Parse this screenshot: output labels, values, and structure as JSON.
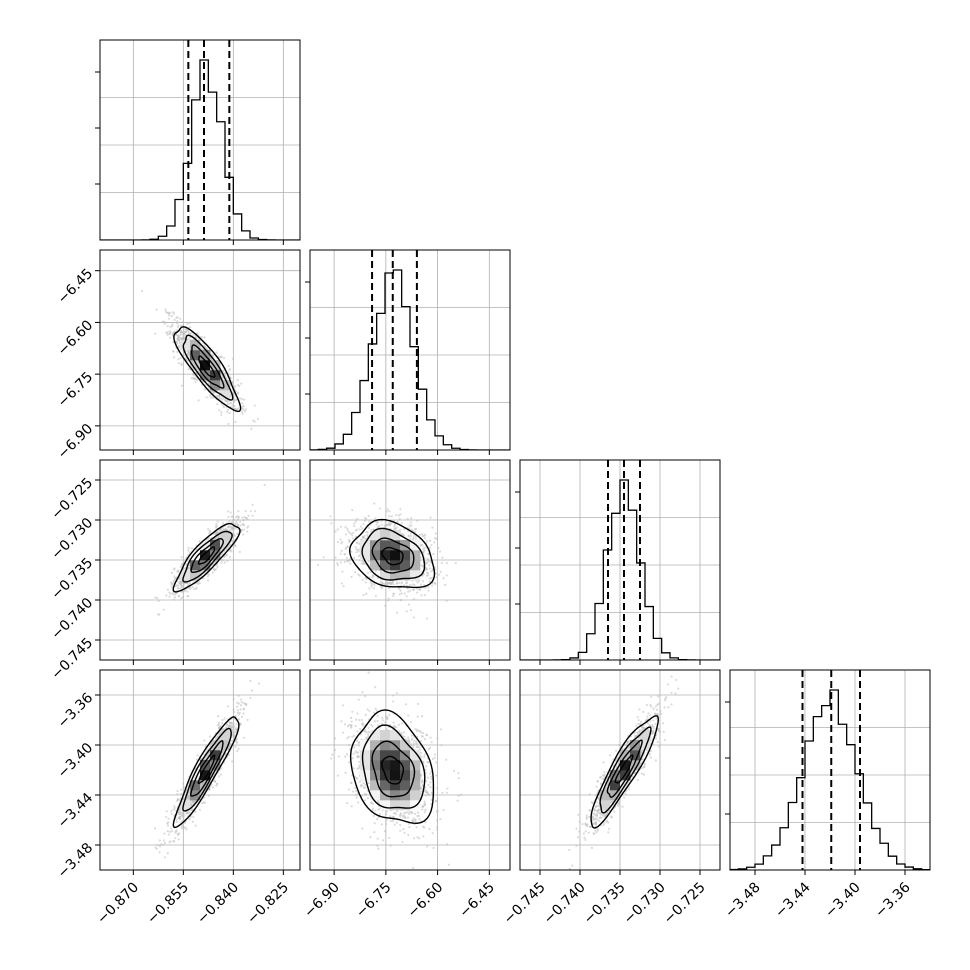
{
  "chart_data": {
    "type": "corner",
    "n_params": 4,
    "colors": {
      "hist": "#000000",
      "grid": "#b0b0b0",
      "points": "#bdbdbd",
      "contour": "#000000",
      "frame": "#000000"
    },
    "grid": true,
    "params": [
      {
        "range": [
          -0.88,
          -0.82
        ],
        "ticks": [
          -0.87,
          -0.855,
          -0.84,
          -0.825
        ],
        "tick_labels": [
          "−0.870",
          "−0.855",
          "−0.840",
          "−0.825"
        ],
        "quantiles": [
          -0.8535,
          -0.8488,
          -0.8412
        ],
        "mean": -0.848,
        "sd": 0.0048,
        "hist_peak": 0.9
      },
      {
        "range": [
          -6.97,
          -6.39
        ],
        "ticks": [
          -6.9,
          -6.75,
          -6.6,
          -6.45
        ],
        "tick_labels": [
          "−6.90",
          "−6.75",
          "−6.60",
          "−6.45"
        ],
        "quantiles": [
          -6.79,
          -6.73,
          -6.66
        ],
        "mean": -6.73,
        "sd": 0.06,
        "hist_peak": 0.9
      },
      {
        "range": [
          -0.7475,
          -0.7225
        ],
        "ticks": [
          -0.745,
          -0.74,
          -0.735,
          -0.73,
          -0.725
        ],
        "tick_labels": [
          "−0.745",
          "−0.740",
          "−0.735",
          "−0.730",
          "−0.725"
        ],
        "quantiles": [
          -0.7365,
          -0.7345,
          -0.7325
        ],
        "mean": -0.7345,
        "sd": 0.0021,
        "hist_peak": 0.9
      },
      {
        "range": [
          -3.5,
          -3.34
        ],
        "ticks": [
          -3.48,
          -3.44,
          -3.4,
          -3.36
        ],
        "tick_labels": [
          "−3.48",
          "−3.44",
          "−3.40",
          "−3.36"
        ],
        "quantiles": [
          -3.442,
          -3.419,
          -3.396
        ],
        "mean": -3.42,
        "sd": 0.022,
        "hist_peak": 0.9
      }
    ],
    "correlations": [
      {
        "i": 1,
        "j": 0,
        "rho": -0.85
      },
      {
        "i": 2,
        "j": 0,
        "rho": 0.85
      },
      {
        "i": 2,
        "j": 1,
        "rho": -0.25
      },
      {
        "i": 3,
        "j": 0,
        "rho": 0.92
      },
      {
        "i": 3,
        "j": 1,
        "rho": -0.25
      },
      {
        "i": 3,
        "j": 2,
        "rho": 0.9
      }
    ],
    "contour_levels_sigma": [
      0.5,
      1.0,
      1.5,
      2.0
    ]
  }
}
